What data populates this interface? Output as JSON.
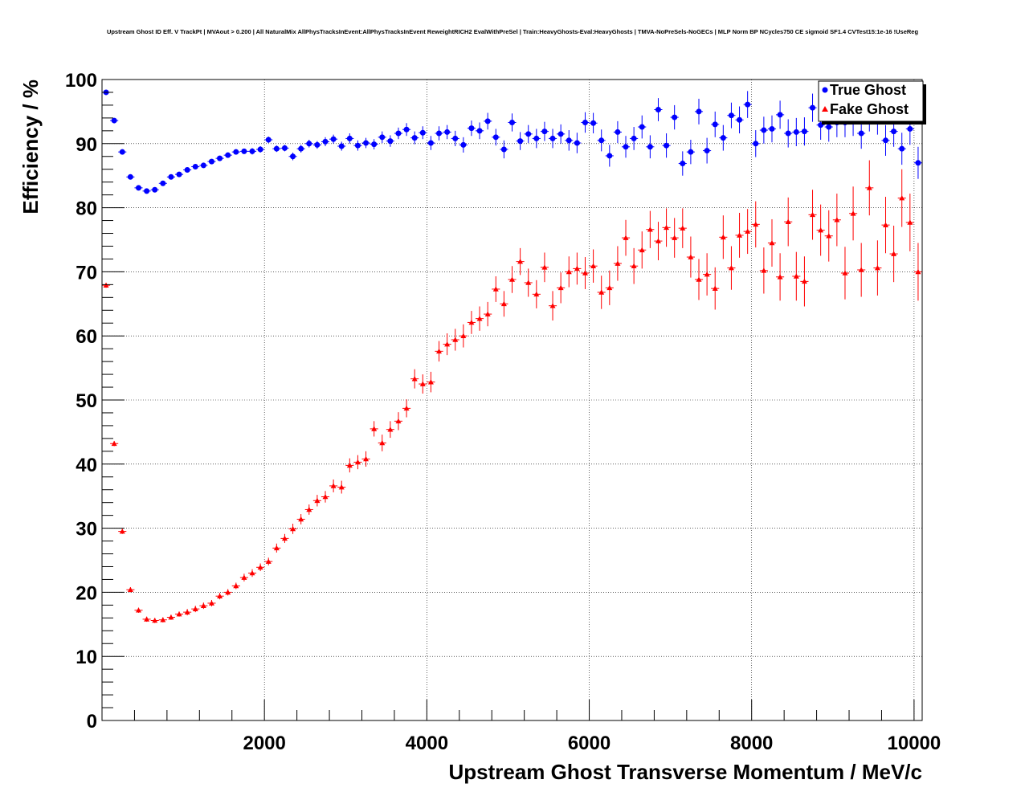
{
  "chart_data": {
    "type": "scatter",
    "title": "Upstream Ghost ID Eff. V TrackPt | MVAout > 0.200 | All NaturalMix AllPhysTracksInEvent:AllPhysTracksInEvent ReweightRICH2 EvalWithPreSel | Train:HeavyGhosts-Eval:HeavyGhosts | TMVA-NoPreSels-NoGECs | MLP Norm BP NCycles750 CE sigmoid SF1.4 CVTest15:1e-16 !UseReg",
    "xlabel": "Upstream Ghost Transverse Momentum / MeV/c",
    "ylabel": "Efficiency / %",
    "xlim": [
      0,
      10100
    ],
    "ylim": [
      0,
      100
    ],
    "grid": true,
    "legend_position": "top-right",
    "x_ticks": [
      2000,
      4000,
      6000,
      8000,
      10000
    ],
    "y_ticks": [
      0,
      10,
      20,
      30,
      40,
      50,
      60,
      70,
      80,
      90,
      100
    ],
    "x": [
      50,
      150,
      250,
      350,
      450,
      550,
      650,
      750,
      850,
      950,
      1050,
      1150,
      1250,
      1350,
      1450,
      1550,
      1650,
      1750,
      1850,
      1950,
      2050,
      2150,
      2250,
      2350,
      2450,
      2550,
      2650,
      2750,
      2850,
      2950,
      3050,
      3150,
      3250,
      3350,
      3450,
      3550,
      3650,
      3750,
      3850,
      3950,
      4050,
      4150,
      4250,
      4350,
      4450,
      4550,
      4650,
      4750,
      4850,
      4950,
      5050,
      5150,
      5250,
      5350,
      5450,
      5550,
      5650,
      5750,
      5850,
      5950,
      6050,
      6150,
      6250,
      6350,
      6450,
      6550,
      6650,
      6750,
      6850,
      6950,
      7050,
      7150,
      7250,
      7350,
      7450,
      7550,
      7650,
      7750,
      7850,
      7950,
      8050,
      8150,
      8250,
      8350,
      8450,
      8550,
      8650,
      8750,
      8850,
      8950,
      9050,
      9150,
      9250,
      9350,
      9450,
      9550,
      9650,
      9750,
      9850,
      9950,
      10050
    ],
    "series": [
      {
        "name": "True Ghost",
        "color": "#0000ff",
        "marker": "circle",
        "values": [
          98.0,
          93.6,
          88.7,
          84.8,
          83.1,
          82.6,
          82.8,
          83.8,
          84.8,
          85.2,
          85.9,
          86.4,
          86.6,
          87.2,
          87.7,
          88.2,
          88.7,
          88.8,
          88.8,
          89.1,
          90.6,
          89.2,
          89.3,
          88.0,
          89.2,
          90.0,
          89.8,
          90.3,
          90.7,
          89.6,
          90.8,
          89.7,
          90.1,
          89.9,
          91.0,
          90.4,
          91.6,
          92.2,
          90.9,
          91.7,
          90.1,
          91.6,
          91.8,
          90.8,
          89.8,
          92.4,
          92.0,
          93.5,
          91.0,
          89.1,
          93.3,
          90.4,
          91.5,
          90.8,
          91.9,
          90.8,
          91.5,
          90.5,
          90.1,
          93.3,
          93.2,
          90.5,
          88.1,
          91.8,
          89.5,
          90.8,
          92.6,
          89.5,
          95.3,
          89.7,
          94.1,
          86.9,
          88.7,
          95.0,
          88.9,
          93.0,
          90.9,
          94.4,
          93.7,
          96.1,
          90.0,
          92.1,
          92.3,
          94.5,
          91.6,
          91.8,
          91.9,
          95.6,
          92.9,
          92.6,
          93.3,
          93.3,
          93.5,
          91.6,
          94.3,
          93.8,
          90.5,
          91.9,
          89.2,
          92.3,
          87.0
        ],
        "errors": [
          0.2,
          0.3,
          0.3,
          0.3,
          0.3,
          0.3,
          0.3,
          0.3,
          0.3,
          0.3,
          0.3,
          0.4,
          0.4,
          0.4,
          0.4,
          0.4,
          0.4,
          0.4,
          0.5,
          0.5,
          0.5,
          0.5,
          0.5,
          0.6,
          0.6,
          0.6,
          0.6,
          0.7,
          0.7,
          0.7,
          0.8,
          0.8,
          0.8,
          0.8,
          0.9,
          0.9,
          0.9,
          1.0,
          1.0,
          1.0,
          1.1,
          1.1,
          1.1,
          1.2,
          1.2,
          1.2,
          1.3,
          1.3,
          1.3,
          1.4,
          1.4,
          1.4,
          1.4,
          1.5,
          1.5,
          1.5,
          1.5,
          1.6,
          1.6,
          1.6,
          1.6,
          1.7,
          1.7,
          1.7,
          1.7,
          1.8,
          1.8,
          1.8,
          1.8,
          1.9,
          1.9,
          1.9,
          1.9,
          2.0,
          2.0,
          2.0,
          2.0,
          2.0,
          2.1,
          2.1,
          2.1,
          2.1,
          2.1,
          2.2,
          2.2,
          2.2,
          2.2,
          2.2,
          2.3,
          2.3,
          2.3,
          2.3,
          2.3,
          2.4,
          2.4,
          2.4,
          2.4,
          2.4,
          2.5,
          2.5,
          2.5
        ]
      },
      {
        "name": "Fake Ghost",
        "color": "#ff0000",
        "marker": "triangle",
        "values": [
          67.9,
          43.2,
          29.5,
          20.4,
          17.2,
          15.8,
          15.6,
          15.7,
          16.1,
          16.6,
          16.9,
          17.4,
          17.9,
          18.3,
          19.4,
          20.0,
          21.0,
          22.3,
          23.0,
          23.9,
          24.8,
          26.9,
          28.4,
          29.9,
          31.4,
          32.9,
          34.3,
          34.9,
          36.6,
          36.4,
          39.8,
          40.3,
          40.8,
          45.5,
          43.3,
          45.4,
          46.7,
          48.7,
          53.3,
          52.5,
          52.8,
          57.6,
          58.7,
          59.4,
          60.0,
          62.1,
          62.7,
          63.4,
          67.3,
          65.0,
          68.8,
          71.6,
          68.3,
          66.5,
          70.7,
          64.7,
          67.5,
          70.0,
          70.5,
          69.8,
          70.9,
          66.8,
          67.5,
          71.3,
          75.3,
          70.9,
          73.4,
          76.6,
          74.8,
          76.9,
          75.3,
          76.8,
          72.3,
          68.8,
          69.6,
          67.4,
          75.4,
          70.6,
          75.7,
          76.3,
          77.4,
          70.2,
          74.5,
          69.2,
          77.8,
          69.3,
          68.5,
          78.9,
          76.5,
          75.6,
          78.1,
          69.8,
          79.1,
          70.3,
          83.1,
          70.6,
          77.3,
          72.8,
          81.5,
          77.7,
          70.0
        ],
        "errors": [
          0.4,
          0.4,
          0.4,
          0.4,
          0.4,
          0.4,
          0.4,
          0.4,
          0.4,
          0.4,
          0.5,
          0.5,
          0.5,
          0.5,
          0.5,
          0.5,
          0.5,
          0.6,
          0.6,
          0.6,
          0.6,
          0.7,
          0.7,
          0.8,
          0.8,
          0.8,
          0.9,
          0.9,
          1.0,
          1.0,
          1.1,
          1.1,
          1.2,
          1.2,
          1.3,
          1.3,
          1.4,
          1.4,
          1.5,
          1.5,
          1.6,
          1.6,
          1.7,
          1.7,
          1.8,
          1.8,
          1.9,
          1.9,
          2.0,
          2.0,
          2.1,
          2.1,
          2.2,
          2.2,
          2.3,
          2.3,
          2.4,
          2.4,
          2.5,
          2.5,
          2.6,
          2.6,
          2.7,
          2.7,
          2.8,
          2.8,
          2.9,
          2.9,
          3.0,
          3.0,
          3.1,
          3.1,
          3.2,
          3.2,
          3.3,
          3.3,
          3.4,
          3.4,
          3.5,
          3.5,
          3.6,
          3.6,
          3.7,
          3.7,
          3.8,
          3.8,
          3.9,
          3.9,
          4.0,
          4.0,
          4.1,
          4.1,
          4.2,
          4.2,
          4.3,
          4.3,
          4.4,
          4.4,
          4.5,
          4.5,
          4.5
        ]
      }
    ]
  }
}
